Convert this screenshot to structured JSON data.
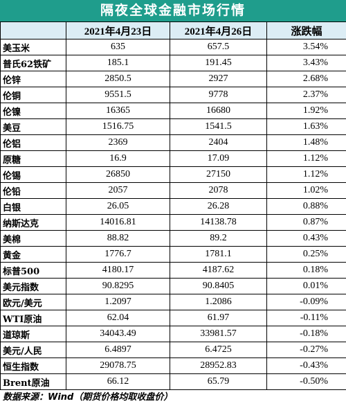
{
  "header": {
    "title": "隔夜全球金融市场行情"
  },
  "table": {
    "columns": [
      "2021年4月23日",
      "2021年4月26日",
      "涨跌幅"
    ],
    "rows": [
      [
        "美玉米",
        "635",
        "657.5",
        "3.54%"
      ],
      [
        "普氏62铁矿",
        "185.1",
        "191.45",
        "3.43%"
      ],
      [
        "伦锌",
        "2850.5",
        "2927",
        "2.68%"
      ],
      [
        "伦铜",
        "9551.5",
        "9778",
        "2.37%"
      ],
      [
        "伦镍",
        "16365",
        "16680",
        "1.92%"
      ],
      [
        "美豆",
        "1516.75",
        "1541.5",
        "1.63%"
      ],
      [
        "伦铝",
        "2369",
        "2404",
        "1.48%"
      ],
      [
        "原糖",
        "16.9",
        "17.09",
        "1.12%"
      ],
      [
        "伦锡",
        "26850",
        "27150",
        "1.12%"
      ],
      [
        "伦铅",
        "2057",
        "2078",
        "1.02%"
      ],
      [
        "白银",
        "26.05",
        "26.28",
        "0.88%"
      ],
      [
        "纳斯达克",
        "14016.81",
        "14138.78",
        "0.87%"
      ],
      [
        "美棉",
        "88.82",
        "89.2",
        "0.43%"
      ],
      [
        "黄金",
        "1776.7",
        "1781.1",
        "0.25%"
      ],
      [
        "标普500",
        "4180.17",
        "4187.62",
        "0.18%"
      ],
      [
        "美元指数",
        "90.8295",
        "90.8405",
        "0.01%"
      ],
      [
        "欧元/美元",
        "1.2097",
        "1.2086",
        "-0.09%"
      ],
      [
        "WTI原油",
        "62.04",
        "61.97",
        "-0.11%"
      ],
      [
        "道琼斯",
        "34043.49",
        "33981.57",
        "-0.18%"
      ],
      [
        "美元/人民",
        "6.4897",
        "6.4725",
        "-0.27%"
      ],
      [
        "恒生指数",
        "29078.75",
        "28952.83",
        "-0.43%"
      ],
      [
        "Brent原油",
        "66.12",
        "65.79",
        "-0.50%"
      ]
    ]
  },
  "footer": {
    "source": "数据来源：Wind（期货价格均取收盘价）"
  }
}
